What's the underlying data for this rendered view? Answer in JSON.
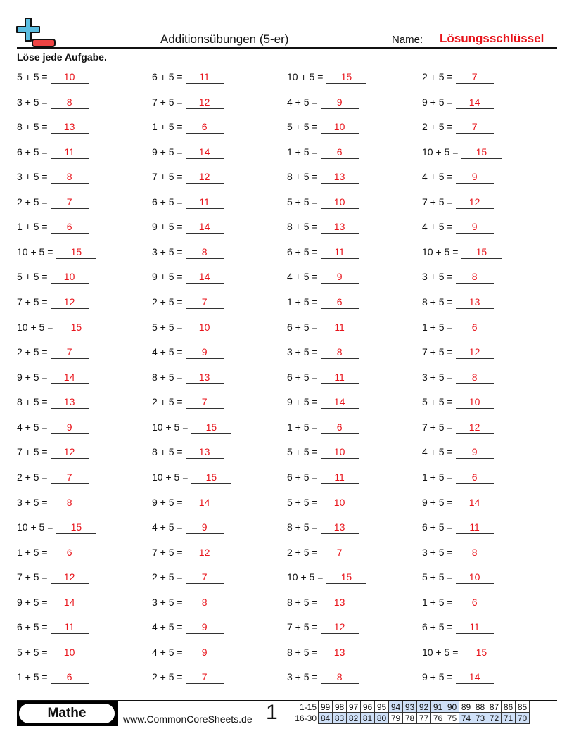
{
  "header": {
    "title": "Additionsübungen (5-er)",
    "name_label": "Name:",
    "name_value": "Lösungsschlüssel",
    "instruction": "Löse jede Aufgabe."
  },
  "colors": {
    "answer": "#e8141b",
    "logo_plus": "#5bbde0",
    "logo_minus": "#ee4444",
    "score_highlight": "#cfe0f7"
  },
  "columns": [
    [
      {
        "q": "5 + 5 =",
        "a": "10"
      },
      {
        "q": "3 + 5 =",
        "a": "8"
      },
      {
        "q": "8 + 5 =",
        "a": "13"
      },
      {
        "q": "6 + 5 =",
        "a": "11"
      },
      {
        "q": "3 + 5 =",
        "a": "8"
      },
      {
        "q": "2 + 5 =",
        "a": "7"
      },
      {
        "q": "1 + 5 =",
        "a": "6"
      },
      {
        "q": "10 + 5 =",
        "a": "15"
      },
      {
        "q": "5 + 5 =",
        "a": "10"
      },
      {
        "q": "7 + 5 =",
        "a": "12"
      },
      {
        "q": "10 + 5 =",
        "a": "15"
      },
      {
        "q": "2 + 5 =",
        "a": "7"
      },
      {
        "q": "9 + 5 =",
        "a": "14"
      },
      {
        "q": "8 + 5 =",
        "a": "13"
      },
      {
        "q": "4 + 5 =",
        "a": "9"
      },
      {
        "q": "7 + 5 =",
        "a": "12"
      },
      {
        "q": "2 + 5 =",
        "a": "7"
      },
      {
        "q": "3 + 5 =",
        "a": "8"
      },
      {
        "q": "10 + 5 =",
        "a": "15"
      },
      {
        "q": "1 + 5 =",
        "a": "6"
      },
      {
        "q": "7 + 5 =",
        "a": "12"
      },
      {
        "q": "9 + 5 =",
        "a": "14"
      },
      {
        "q": "6 + 5 =",
        "a": "11"
      },
      {
        "q": "5 + 5 =",
        "a": "10"
      },
      {
        "q": "1 + 5 =",
        "a": "6"
      }
    ],
    [
      {
        "q": "6 + 5 =",
        "a": "11"
      },
      {
        "q": "7 + 5 =",
        "a": "12"
      },
      {
        "q": "1 + 5 =",
        "a": "6"
      },
      {
        "q": "9 + 5 =",
        "a": "14"
      },
      {
        "q": "7 + 5 =",
        "a": "12"
      },
      {
        "q": "6 + 5 =",
        "a": "11"
      },
      {
        "q": "9 + 5 =",
        "a": "14"
      },
      {
        "q": "3 + 5 =",
        "a": "8"
      },
      {
        "q": "9 + 5 =",
        "a": "14"
      },
      {
        "q": "2 + 5 =",
        "a": "7"
      },
      {
        "q": "5 + 5 =",
        "a": "10"
      },
      {
        "q": "4 + 5 =",
        "a": "9"
      },
      {
        "q": "8 + 5 =",
        "a": "13"
      },
      {
        "q": "2 + 5 =",
        "a": "7"
      },
      {
        "q": "10 + 5 =",
        "a": "15"
      },
      {
        "q": "8 + 5 =",
        "a": "13"
      },
      {
        "q": "10 + 5 =",
        "a": "15"
      },
      {
        "q": "9 + 5 =",
        "a": "14"
      },
      {
        "q": "4 + 5 =",
        "a": "9"
      },
      {
        "q": "7 + 5 =",
        "a": "12"
      },
      {
        "q": "2 + 5 =",
        "a": "7"
      },
      {
        "q": "3 + 5 =",
        "a": "8"
      },
      {
        "q": "4 + 5 =",
        "a": "9"
      },
      {
        "q": "4 + 5 =",
        "a": "9"
      },
      {
        "q": "2 + 5 =",
        "a": "7"
      }
    ],
    [
      {
        "q": "10 + 5 =",
        "a": "15"
      },
      {
        "q": "4 + 5 =",
        "a": "9"
      },
      {
        "q": "5 + 5 =",
        "a": "10"
      },
      {
        "q": "1 + 5 =",
        "a": "6"
      },
      {
        "q": "8 + 5 =",
        "a": "13"
      },
      {
        "q": "5 + 5 =",
        "a": "10"
      },
      {
        "q": "8 + 5 =",
        "a": "13"
      },
      {
        "q": "6 + 5 =",
        "a": "11"
      },
      {
        "q": "4 + 5 =",
        "a": "9"
      },
      {
        "q": "1 + 5 =",
        "a": "6"
      },
      {
        "q": "6 + 5 =",
        "a": "11"
      },
      {
        "q": "3 + 5 =",
        "a": "8"
      },
      {
        "q": "6 + 5 =",
        "a": "11"
      },
      {
        "q": "9 + 5 =",
        "a": "14"
      },
      {
        "q": "1 + 5 =",
        "a": "6"
      },
      {
        "q": "5 + 5 =",
        "a": "10"
      },
      {
        "q": "6 + 5 =",
        "a": "11"
      },
      {
        "q": "5 + 5 =",
        "a": "10"
      },
      {
        "q": "8 + 5 =",
        "a": "13"
      },
      {
        "q": "2 + 5 =",
        "a": "7"
      },
      {
        "q": "10 + 5 =",
        "a": "15"
      },
      {
        "q": "8 + 5 =",
        "a": "13"
      },
      {
        "q": "7 + 5 =",
        "a": "12"
      },
      {
        "q": "8 + 5 =",
        "a": "13"
      },
      {
        "q": "3 + 5 =",
        "a": "8"
      }
    ],
    [
      {
        "q": "2 + 5 =",
        "a": "7"
      },
      {
        "q": "9 + 5 =",
        "a": "14"
      },
      {
        "q": "2 + 5 =",
        "a": "7"
      },
      {
        "q": "10 + 5 =",
        "a": "15"
      },
      {
        "q": "4 + 5 =",
        "a": "9"
      },
      {
        "q": "7 + 5 =",
        "a": "12"
      },
      {
        "q": "4 + 5 =",
        "a": "9"
      },
      {
        "q": "10 + 5 =",
        "a": "15"
      },
      {
        "q": "3 + 5 =",
        "a": "8"
      },
      {
        "q": "8 + 5 =",
        "a": "13"
      },
      {
        "q": "1 + 5 =",
        "a": "6"
      },
      {
        "q": "7 + 5 =",
        "a": "12"
      },
      {
        "q": "3 + 5 =",
        "a": "8"
      },
      {
        "q": "5 + 5 =",
        "a": "10"
      },
      {
        "q": "7 + 5 =",
        "a": "12"
      },
      {
        "q": "4 + 5 =",
        "a": "9"
      },
      {
        "q": "1 + 5 =",
        "a": "6"
      },
      {
        "q": "9 + 5 =",
        "a": "14"
      },
      {
        "q": "6 + 5 =",
        "a": "11"
      },
      {
        "q": "3 + 5 =",
        "a": "8"
      },
      {
        "q": "5 + 5 =",
        "a": "10"
      },
      {
        "q": "1 + 5 =",
        "a": "6"
      },
      {
        "q": "6 + 5 =",
        "a": "11"
      },
      {
        "q": "10 + 5 =",
        "a": "15"
      },
      {
        "q": "9 + 5 =",
        "a": "14"
      }
    ]
  ],
  "footer": {
    "subject": "Mathe",
    "website": "www.CommonCoreSheets.de",
    "page": "1",
    "score_rows": [
      {
        "label": "1-15",
        "values": [
          "99",
          "98",
          "97",
          "96",
          "95",
          "94",
          "93",
          "92",
          "91",
          "90",
          "89",
          "88",
          "87",
          "86",
          "85"
        ],
        "highlighted": [
          false,
          false,
          false,
          false,
          false,
          true,
          true,
          true,
          true,
          true,
          false,
          false,
          false,
          false,
          false
        ]
      },
      {
        "label": "16-30",
        "values": [
          "84",
          "83",
          "82",
          "81",
          "80",
          "79",
          "78",
          "77",
          "76",
          "75",
          "74",
          "73",
          "72",
          "71",
          "70"
        ],
        "highlighted": [
          true,
          true,
          true,
          true,
          true,
          false,
          false,
          false,
          false,
          false,
          true,
          true,
          true,
          true,
          true
        ]
      }
    ]
  }
}
